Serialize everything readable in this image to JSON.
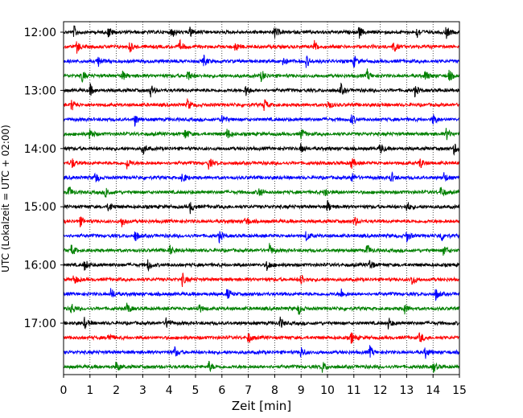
{
  "chart_data": {
    "type": "line",
    "title": "",
    "xlabel": "Zeit  [min]",
    "ylabel": "UTC (Lokalzeit = UTC + 02:00)",
    "xlim": [
      0,
      15
    ],
    "x_ticks": [
      0,
      1,
      2,
      3,
      4,
      5,
      6,
      7,
      8,
      9,
      10,
      11,
      12,
      13,
      14,
      15
    ],
    "y_ticks": [
      "12:00",
      "13:00",
      "14:00",
      "15:00",
      "16:00",
      "17:00"
    ],
    "grid": "vertical dotted",
    "line_colors": [
      "#000000",
      "#ff0000",
      "#0000ff",
      "#008000"
    ],
    "trace_interval_min": 15,
    "traces": [
      {
        "start": "12:00",
        "events": [
          0.4,
          1.7,
          4.1,
          4.8,
          8.0,
          11.2,
          13.4,
          14.5
        ]
      },
      {
        "start": "12:15",
        "events": [
          0.5,
          2.5,
          4.4,
          6.5,
          9.5,
          12.5
        ]
      },
      {
        "start": "12:30",
        "events": [
          1.3,
          5.3,
          8.3,
          9.2,
          11.0
        ]
      },
      {
        "start": "12:45",
        "events": [
          0.7,
          2.2,
          4.7,
          7.5,
          11.5,
          13.7,
          14.6
        ]
      },
      {
        "start": "13:00",
        "events": [
          1.0,
          3.3,
          6.9,
          10.5,
          13.3
        ]
      },
      {
        "start": "13:15",
        "events": [
          0.3,
          4.7,
          7.6,
          10.0
        ]
      },
      {
        "start": "13:30",
        "events": [
          2.7,
          6.0,
          10.9,
          14.0
        ]
      },
      {
        "start": "13:45",
        "events": [
          1.0,
          4.6,
          6.2,
          9.0,
          14.5
        ]
      },
      {
        "start": "14:00",
        "events": [
          3.0,
          9.0,
          12.0,
          14.8
        ]
      },
      {
        "start": "14:15",
        "events": [
          0.3,
          2.4,
          5.5,
          10.9,
          13.5
        ]
      },
      {
        "start": "14:30",
        "events": [
          1.2,
          4.5,
          10.9,
          12.4,
          14.4
        ]
      },
      {
        "start": "14:45",
        "events": [
          0.2,
          1.6,
          7.4,
          9.9,
          14.3
        ]
      },
      {
        "start": "15:00",
        "events": [
          1.7,
          4.8,
          10.0,
          13.0
        ]
      },
      {
        "start": "15:15",
        "events": [
          0.6,
          2.2,
          6.9,
          11.0
        ]
      },
      {
        "start": "15:30",
        "events": [
          2.7,
          5.9,
          9.2,
          13.0,
          14.3
        ]
      },
      {
        "start": "15:45",
        "events": [
          0.3,
          4.0,
          7.8,
          11.5,
          14.4
        ]
      },
      {
        "start": "16:00",
        "events": [
          0.8,
          3.2,
          7.7,
          11.6
        ]
      },
      {
        "start": "16:15",
        "events": [
          0.4,
          4.5,
          9.0,
          13.2
        ]
      },
      {
        "start": "16:30",
        "events": [
          1.8,
          6.2,
          10.5,
          14.1
        ]
      },
      {
        "start": "16:45",
        "events": [
          0.3,
          2.4,
          5.1,
          8.9,
          12.9
        ]
      },
      {
        "start": "17:00",
        "events": [
          0.8,
          3.9,
          8.2,
          12.3
        ]
      },
      {
        "start": "17:15",
        "events": [
          1.7,
          7.0,
          10.9,
          13.5
        ]
      },
      {
        "start": "17:30",
        "events": [
          4.2,
          9.0,
          11.6,
          13.7
        ]
      },
      {
        "start": "17:45",
        "events": [
          2.0,
          5.5,
          9.8,
          14.0
        ]
      }
    ]
  }
}
